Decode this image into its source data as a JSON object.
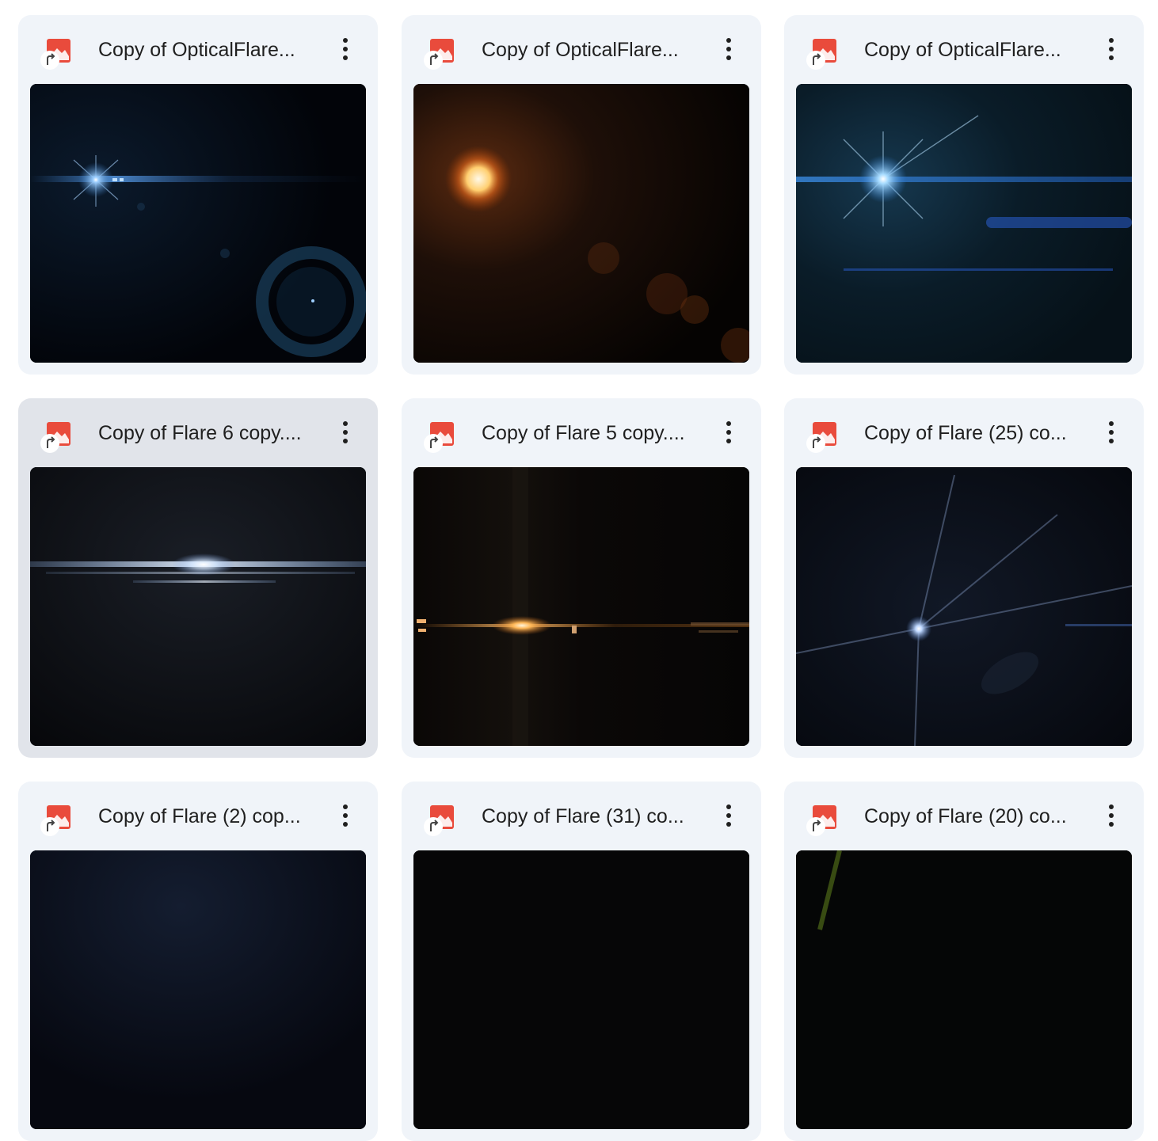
{
  "files": [
    {
      "title": "Copy of OpticalFlare...",
      "icon": "slides-shortcut-icon",
      "thumbnail": "blue-lens-flare-with-ring"
    },
    {
      "title": "Copy of OpticalFlare...",
      "icon": "slides-shortcut-icon",
      "thumbnail": "orange-sun-flare"
    },
    {
      "title": "Copy of OpticalFlare...",
      "icon": "slides-shortcut-icon",
      "thumbnail": "blue-star-streak-flare"
    },
    {
      "title": "Copy of Flare 6 copy....",
      "icon": "slides-shortcut-icon",
      "thumbnail": "white-horizontal-streak-flare",
      "selected": true
    },
    {
      "title": "Copy of Flare 5 copy....",
      "icon": "slides-shortcut-icon",
      "thumbnail": "golden-horizontal-flare"
    },
    {
      "title": "Copy of Flare (25) co...",
      "icon": "slides-shortcut-icon",
      "thumbnail": "blue-ray-star-flare"
    },
    {
      "title": "Copy of Flare (2) cop...",
      "icon": "slides-shortcut-icon",
      "thumbnail": "dark-blue-flare"
    },
    {
      "title": "Copy of Flare (31) co...",
      "icon": "slides-shortcut-icon",
      "thumbnail": "dark-flare"
    },
    {
      "title": "Copy of Flare (20) co...",
      "icon": "slides-shortcut-icon",
      "thumbnail": "green-streak-flare"
    }
  ],
  "colors": {
    "card_bg": "#f0f4f9",
    "card_selected_bg": "#e1e4ea",
    "icon_red": "#e94b3c",
    "title_text": "#1f1f1f"
  }
}
